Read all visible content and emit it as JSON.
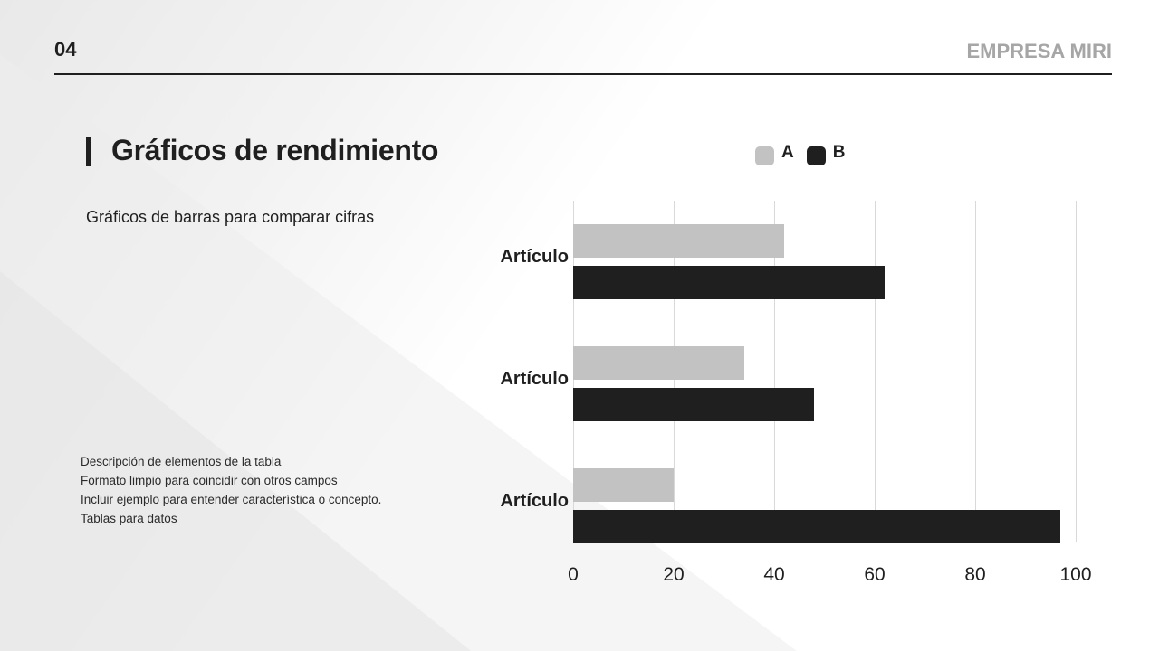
{
  "header": {
    "page_number": "04",
    "brand": "EMPRESA MIRI"
  },
  "main": {
    "title": "Gráficos de rendimiento",
    "subtitle": "Gráficos de barras para comparar cifras",
    "description": [
      "Descripción de elementos de la tabla",
      "Formato limpio para coincidir con otros campos",
      "Incluir ejemplo para entender característica o concepto.",
      "Tablas para datos"
    ]
  },
  "colors": {
    "series_a": "#c2c2c2",
    "series_b": "#1f1f1f",
    "brand_text": "#a6a6a6"
  },
  "chart_data": {
    "type": "bar",
    "orientation": "horizontal",
    "title": "",
    "categories": [
      "Artículo",
      "Artículo",
      "Artículo"
    ],
    "series": [
      {
        "name": "A",
        "color": "#c2c2c2",
        "values": [
          42,
          34,
          20
        ]
      },
      {
        "name": "B",
        "color": "#1f1f1f",
        "values": [
          62,
          48,
          97
        ]
      }
    ],
    "xlabel": "",
    "ylabel": "",
    "xlim": [
      0,
      100
    ],
    "x_ticks": [
      "0",
      "20",
      "40",
      "60",
      "80",
      "100"
    ],
    "grid": "vertical",
    "legend_position": "top"
  }
}
